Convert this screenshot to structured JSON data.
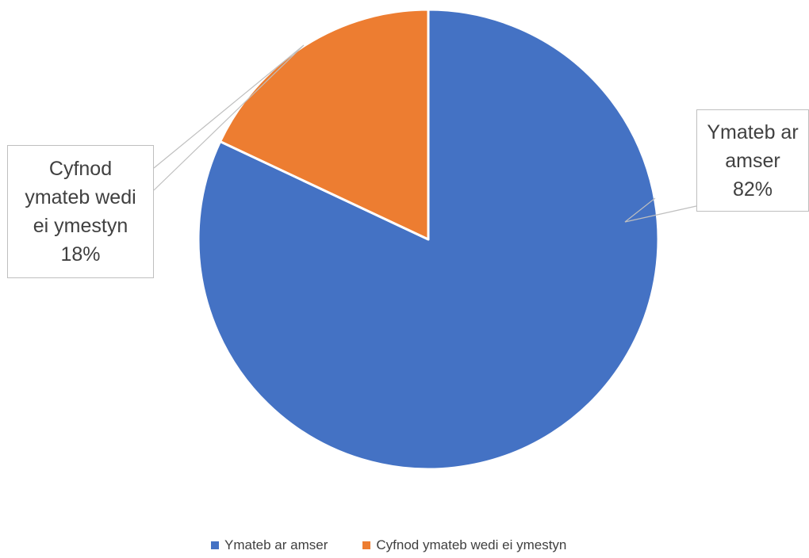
{
  "chart_data": {
    "type": "pie",
    "categories": [
      "Ymateb ar amser",
      "Cyfnod ymateb wedi ei ymestyn"
    ],
    "values": [
      82,
      18
    ],
    "colors": [
      "#4472c4",
      "#ed7d31"
    ],
    "data_labels": [
      {
        "lines": [
          "Ymateb ar",
          "amser"
        ],
        "value": "82%"
      },
      {
        "lines": [
          "Cyfnod",
          "ymateb wedi",
          "ei ymestyn"
        ],
        "value": "18%"
      }
    ],
    "legend": {
      "position": "bottom",
      "entries": [
        "Ymateb ar amser",
        "Cyfnod ymateb wedi ei ymestyn"
      ]
    }
  }
}
